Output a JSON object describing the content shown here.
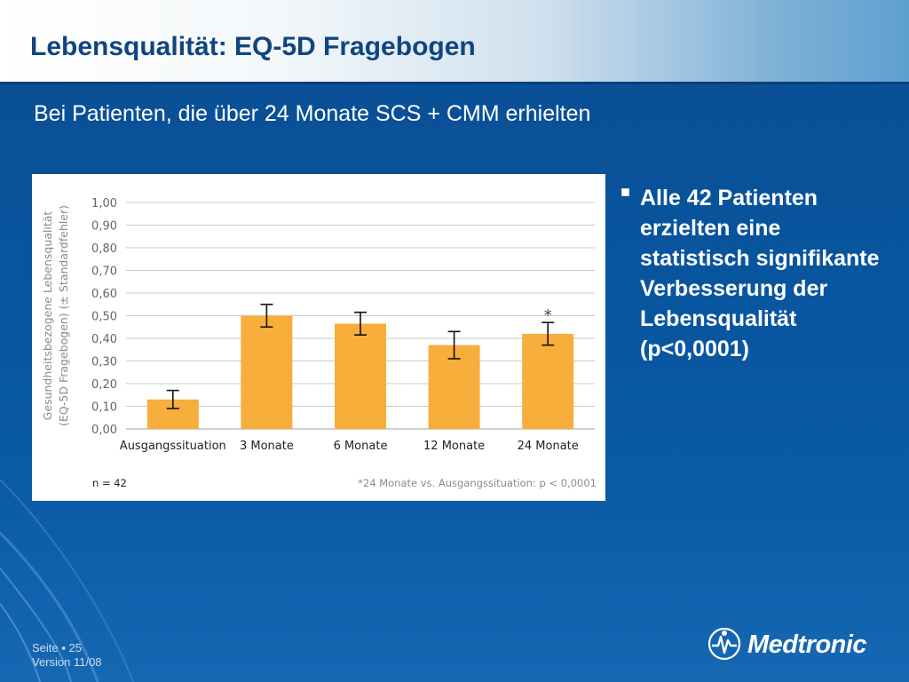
{
  "slide": {
    "title": "Lebensqualität: EQ-5D Fragebogen",
    "subtitle": "Bei Patienten, die über 24 Monate SCS + CMM erhielten",
    "bullet": "Alle 42 Patienten erzielten eine statistisch signifikante Verbesserung der Lebensqualität (p<0,0001)",
    "footer_page": "Seite ▪ 25",
    "footer_version": "Version 11/08",
    "logo_text": "Medtronic",
    "colors": {
      "background": "#0a4f95",
      "bar": "#f7ae3b",
      "title": "#10457f"
    }
  },
  "chart_data": {
    "type": "bar",
    "ylabel_line1": "Gesundheitsbezogene Lebensqualität",
    "ylabel_line2": "(EQ-5D Fragebogen) (± Standardfehler)",
    "categories": [
      "Ausgangssituation",
      "3 Monate",
      "6 Monate",
      "12 Monate",
      "24 Monate"
    ],
    "values": [
      0.13,
      0.5,
      0.465,
      0.37,
      0.42
    ],
    "error": [
      0.04,
      0.05,
      0.05,
      0.06,
      0.05
    ],
    "ylim": [
      0,
      1.0
    ],
    "yticks": [
      "0,00",
      "0,10",
      "0,20",
      "0,30",
      "0,40",
      "0,50",
      "0,60",
      "0,70",
      "0,80",
      "0,90",
      "1,00"
    ],
    "grid": true,
    "significance_marker": {
      "category": "24 Monate",
      "symbol": "*"
    },
    "n_label": "n = 42",
    "footnote": "*24 Monate vs. Ausgangssituation: p < 0,0001"
  }
}
